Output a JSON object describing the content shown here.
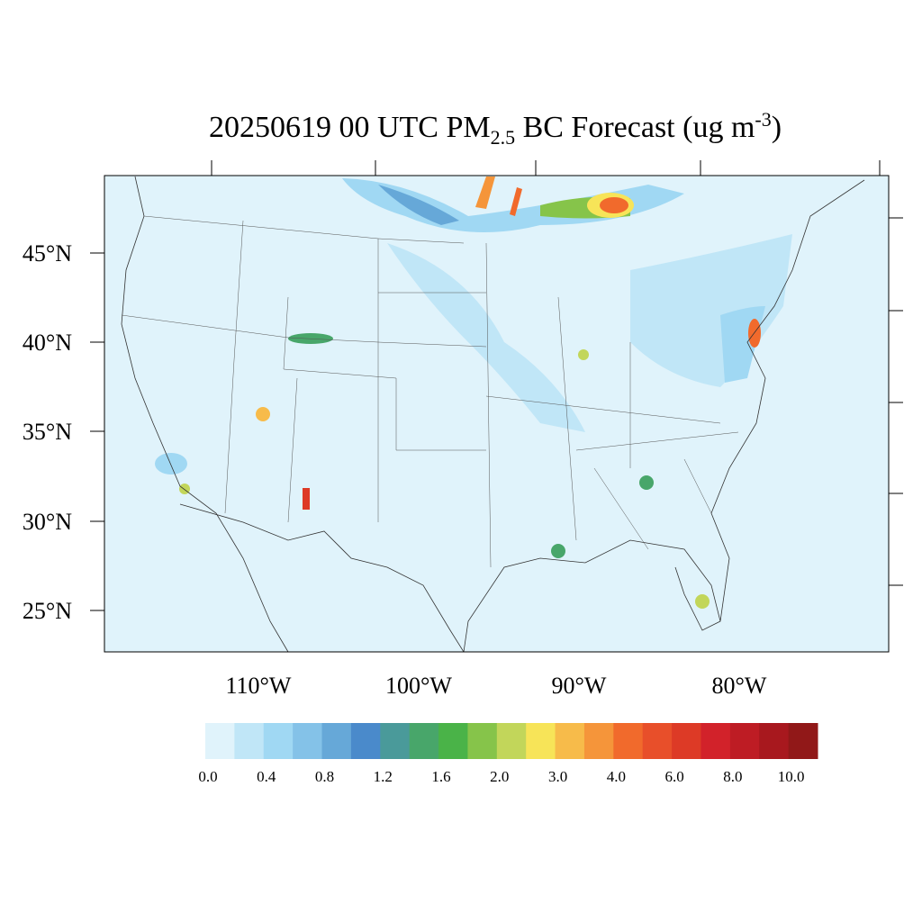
{
  "title": {
    "prefix": "20250619 00 UTC PM",
    "sub": "2.5",
    "middle": " BC Forecast (ug m",
    "sup": "-3",
    "suffix": ")"
  },
  "lat_labels": [
    "45°N",
    "40°N",
    "35°N",
    "30°N",
    "25°N"
  ],
  "lon_labels": [
    "110°W",
    "100°W",
    "90°W",
    "80°W"
  ],
  "colorbar": {
    "colors": [
      "#e0f3fb",
      "#c0e6f7",
      "#a0d8f3",
      "#84c2e8",
      "#66a8d8",
      "#4a8acb",
      "#4a9a9a",
      "#48a66a",
      "#4ab348",
      "#86c44a",
      "#c2d65a",
      "#f7e458",
      "#f7bb4a",
      "#f5953a",
      "#f16a2c",
      "#e84f2a",
      "#dd3a26",
      "#d2222a",
      "#be1c24",
      "#a8181e",
      "#911818"
    ],
    "labels": [
      "0.0",
      "0.4",
      "0.8",
      "1.2",
      "1.6",
      "2.0",
      "3.0",
      "4.0",
      "6.0",
      "8.0",
      "10.0"
    ]
  }
}
